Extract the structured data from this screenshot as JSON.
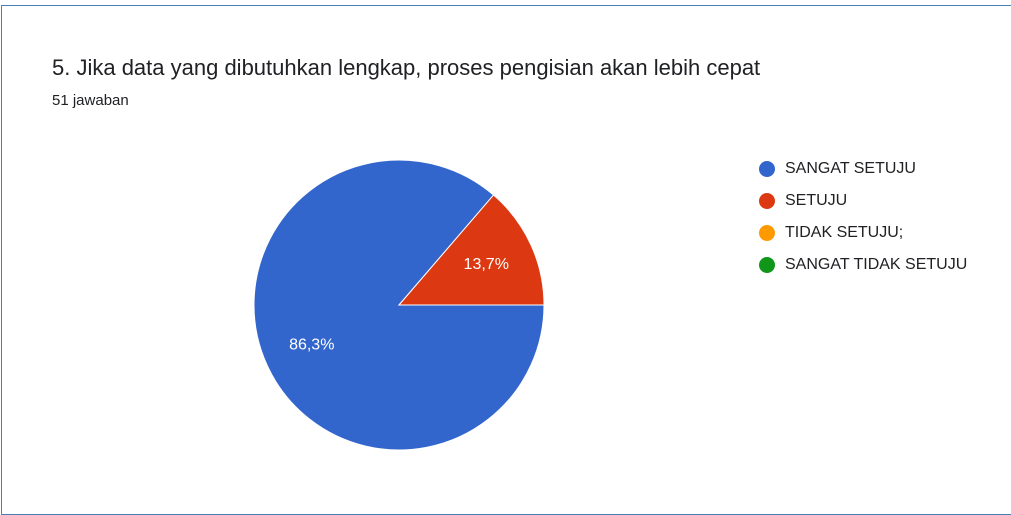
{
  "chart_data": {
    "type": "pie",
    "title": "5. Jika data yang dibutuhkan lengkap, proses pengisian akan lebih cepat",
    "subtitle": "51 jawaban",
    "categories": [
      "SANGAT SETUJU",
      "SETUJU",
      "TIDAK SETUJU;",
      "SANGAT TIDAK SETUJU"
    ],
    "values": [
      86.3,
      13.7,
      0,
      0
    ],
    "value_labels": [
      "86,3%",
      "13,7%",
      null,
      null
    ],
    "colors": [
      "#3366cc",
      "#dc3912",
      "#ff9900",
      "#109618"
    ],
    "legend": "right"
  }
}
